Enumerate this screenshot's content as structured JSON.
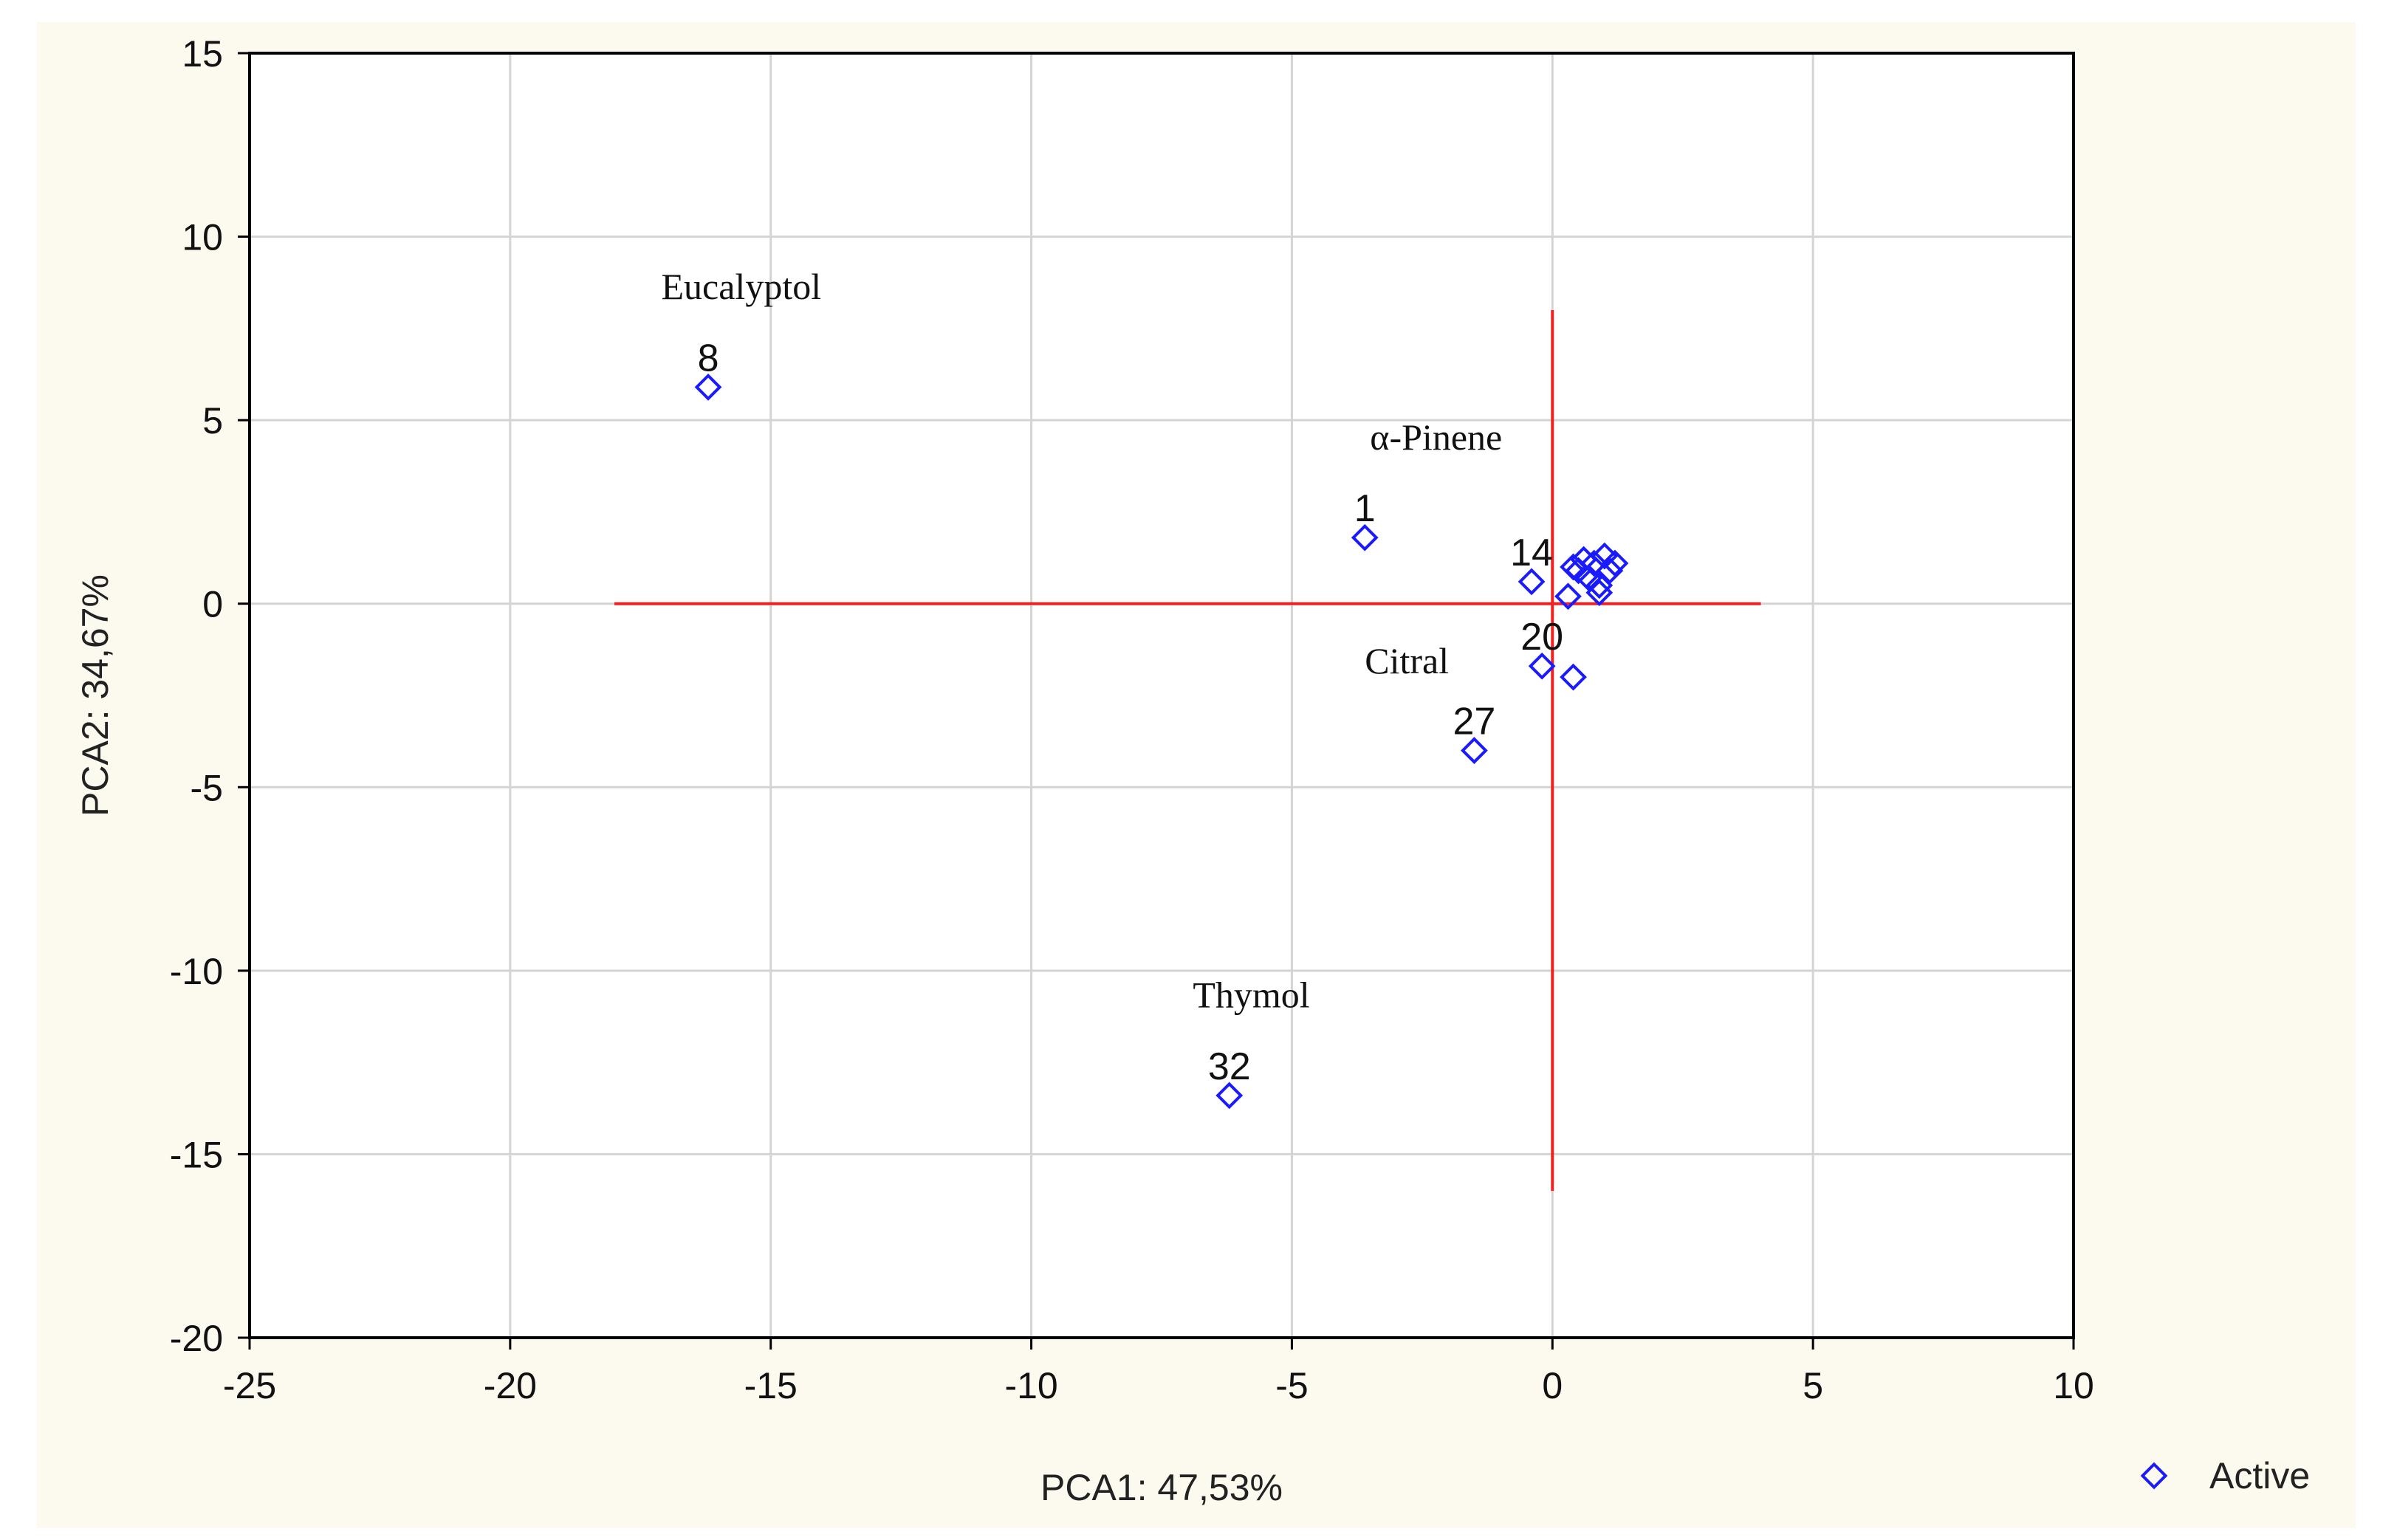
{
  "chart_data": {
    "type": "scatter",
    "title": "",
    "xlabel": "PCA1: 47,53%",
    "ylabel": "PCA2: 34,67%",
    "xlim": [
      -25,
      10
    ],
    "ylim": [
      -20,
      15
    ],
    "xticks": [
      "-25",
      "-20",
      "-15",
      "-10",
      "-5",
      "0",
      "5",
      "10"
    ],
    "yticks": [
      "15",
      "10",
      "5",
      "0",
      "-5",
      "-10",
      "-15",
      "-20"
    ],
    "xtick_values": [
      -25,
      -20,
      -15,
      -10,
      -5,
      0,
      5,
      10
    ],
    "ytick_values": [
      15,
      10,
      5,
      0,
      -5,
      -10,
      -15,
      -20
    ],
    "grid": true,
    "legend": {
      "position": "bottom-right",
      "entries": [
        "Active"
      ]
    },
    "colors": {
      "points": "#1a1aff",
      "reference_lines": "#ee2222",
      "grid": "#d4d4d4",
      "background": "#fcf9ee"
    },
    "reference_lines": [
      {
        "orientation": "horizontal",
        "y": 0,
        "x_from": -18,
        "x_to": 4
      },
      {
        "orientation": "vertical",
        "x": 0,
        "y_from": -16,
        "y_to": 8
      }
    ],
    "series": [
      {
        "name": "Active",
        "points": [
          {
            "x": -16.2,
            "y": 5.9,
            "label": "8"
          },
          {
            "x": -3.6,
            "y": 1.8,
            "label": "1"
          },
          {
            "x": -1.5,
            "y": -4.0,
            "label": "27"
          },
          {
            "x": -6.2,
            "y": -13.4,
            "label": "32"
          },
          {
            "x": -0.4,
            "y": 0.6,
            "label": "14"
          },
          {
            "x": -0.2,
            "y": -1.7,
            "label": "20"
          },
          {
            "x": 0.4,
            "y": -2.0,
            "label": ""
          },
          {
            "x": 0.3,
            "y": 0.2,
            "label": ""
          },
          {
            "x": 0.5,
            "y": 0.9,
            "label": ""
          },
          {
            "x": 0.6,
            "y": 1.2,
            "label": ""
          },
          {
            "x": 0.7,
            "y": 0.7,
            "label": ""
          },
          {
            "x": 0.8,
            "y": 1.1,
            "label": ""
          },
          {
            "x": 0.9,
            "y": 0.5,
            "label": ""
          },
          {
            "x": 1.0,
            "y": 1.3,
            "label": ""
          },
          {
            "x": 1.1,
            "y": 0.9,
            "label": ""
          },
          {
            "x": 1.2,
            "y": 1.1,
            "label": ""
          },
          {
            "x": 0.9,
            "y": 0.3,
            "label": ""
          },
          {
            "x": 0.4,
            "y": 1.0,
            "label": ""
          }
        ]
      }
    ],
    "annotations": [
      {
        "text": "Eucalyptol",
        "x": -17.1,
        "y": 8.3
      },
      {
        "text": "α-Pinene",
        "x": -3.5,
        "y": 4.2
      },
      {
        "text": "Citral",
        "x": -3.6,
        "y": -1.9
      },
      {
        "text": "Thymol",
        "x": -6.9,
        "y": -11.0
      }
    ]
  }
}
